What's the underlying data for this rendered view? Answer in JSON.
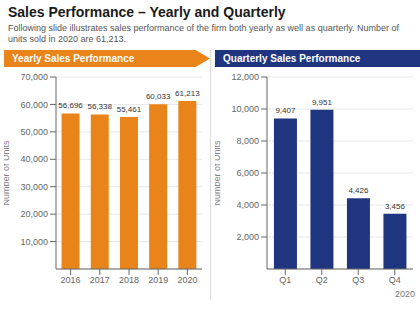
{
  "title": "Sales Performance – Yearly and Quarterly",
  "subtitle": "Following slide illustrates sales performance of the firm both yearly as well as quarterly. Number of units sold in 2020 are 61,213.",
  "chart_data": [
    {
      "type": "bar",
      "title": "Yearly Sales Performance",
      "y_label": "Number of Units",
      "categories": [
        "2016",
        "2017",
        "2018",
        "2019",
        "2020"
      ],
      "values": [
        56696,
        56338,
        55461,
        60033,
        61213
      ],
      "value_labels": [
        "56,696",
        "56,338",
        "55,461",
        "60,033",
        "61,213"
      ],
      "data_labels": true,
      "color": "#E8841A",
      "ylim": [
        0,
        70000
      ],
      "yticks": [
        {
          "value": 10000,
          "label": "10,000"
        },
        {
          "value": 20000,
          "label": "20,000"
        },
        {
          "value": 30000,
          "label": "30,000"
        },
        {
          "value": 40000,
          "label": "40,000"
        },
        {
          "value": 50000,
          "label": "50,000"
        },
        {
          "value": 60000,
          "label": "60,000"
        },
        {
          "value": 70000,
          "label": "70,000"
        }
      ],
      "grid": true
    },
    {
      "type": "bar",
      "title": "Quarterly Sales Performance",
      "y_label": "Number of Units",
      "categories": [
        "Q1",
        "Q2",
        "Q3",
        "Q4"
      ],
      "values": [
        9407,
        9951,
        4426,
        3456
      ],
      "value_labels": [
        "9,407",
        "9,951",
        "4,426",
        "3,456"
      ],
      "data_labels": true,
      "color": "#1F3580",
      "ylim": [
        0,
        12000
      ],
      "yticks": [
        {
          "value": 2000,
          "label": "2,000"
        },
        {
          "value": 4000,
          "label": "4,000"
        },
        {
          "value": 6000,
          "label": "6,000"
        },
        {
          "value": 8000,
          "label": "8,000"
        },
        {
          "value": 10000,
          "label": "10,000"
        },
        {
          "value": 12000,
          "label": "12,000"
        }
      ],
      "grid": true,
      "annotation": "2020"
    }
  ]
}
